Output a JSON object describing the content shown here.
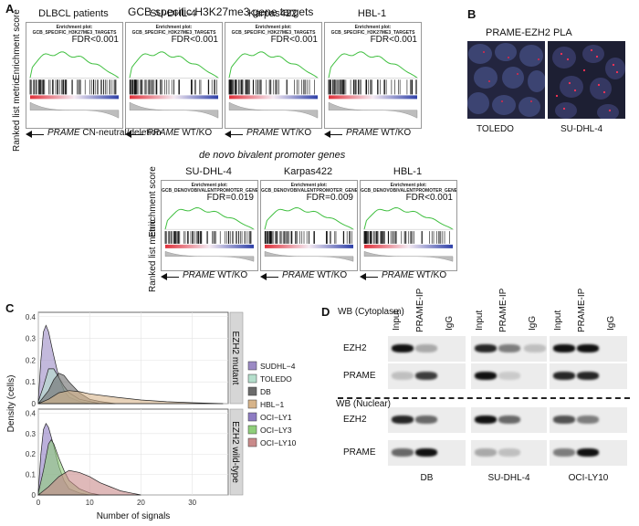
{
  "panel_a": {
    "label": "A",
    "title_top": "GCB-specific H3K27me3 gene targets",
    "title_bottom": "de novo bivalent promoter genes",
    "ylabel_top": "Enrichment score",
    "ylabel_bottom": "Ranked list metric",
    "top_row": [
      {
        "name": "DLBCL patients",
        "header": "Enrichment plot: GCB_SPECIFIC_H3K27ME3_TARGETS",
        "fdr": "FDR<0.001",
        "axis_gene": "PRAME",
        "axis_text": "CN-neutral/deletion"
      },
      {
        "name": "SU-DHL-4",
        "header": "Enrichment plot: GCB_SPECIFIC_H3K27ME3_TARGETS",
        "fdr": "FDR<0.001",
        "axis_gene": "PRAME",
        "axis_text": "WT/KO"
      },
      {
        "name": "Karpas422",
        "header": "Enrichment plot: GCB_SPECIFIC_H3K27ME3_TARGETS",
        "fdr": "FDR<0.001",
        "axis_gene": "PRAME",
        "axis_text": "WT/KO"
      },
      {
        "name": "HBL-1",
        "header": "Enrichment plot: GCB_SPECIFIC_H3K27ME3_TARGETS",
        "fdr": "FDR<0.001",
        "axis_gene": "PRAME",
        "axis_text": "WT/KO"
      }
    ],
    "bottom_row": [
      {
        "name": "SU-DHL-4",
        "header": "Enrichment plot: GCB_DENOVOBIVALENTPROMOTER_GENES",
        "fdr": "FDR=0.019",
        "axis_gene": "PRAME",
        "axis_text": "WT/KO"
      },
      {
        "name": "Karpas422",
        "header": "Enrichment plot: GCB_DENOVOBIVALENTPROMOTER_GENES",
        "fdr": "FDR=0.009",
        "axis_gene": "PRAME",
        "axis_text": "WT/KO"
      },
      {
        "name": "HBL-1",
        "header": "Enrichment plot: GCB_DENOVOBIVALENTPROMOTER_GENES",
        "fdr": "FDR<0.001",
        "axis_gene": "PRAME",
        "axis_text": "WT/KO"
      }
    ]
  },
  "panel_b": {
    "label": "B",
    "title": "PRAME-EZH2 PLA",
    "images": [
      "TOLEDO",
      "SU-DHL-4"
    ]
  },
  "panel_c": {
    "label": "C",
    "strip_top": "EZH2 mutant",
    "strip_bottom": "EZH2 wild-type",
    "legend": [
      {
        "name": "SUDHL−4",
        "color": "#9b8ac4"
      },
      {
        "name": "TOLEDO",
        "color": "#b5dfcc"
      },
      {
        "name": "DB",
        "color": "#6b6b6b"
      },
      {
        "name": "HBL−1",
        "color": "#d7b48a"
      },
      {
        "name": "OCI−LY1",
        "color": "#8e7cc3"
      },
      {
        "name": "OCI−LY3",
        "color": "#8fce7a"
      },
      {
        "name": "OCI−LY10",
        "color": "#c98a8a"
      }
    ]
  },
  "panel_d": {
    "label": "D",
    "wb_cyto": "WB (Cytoplasm)",
    "wb_nuc": "WB (Nuclear)",
    "lane_labels": [
      "Input",
      "PRAME-IP",
      "IgG"
    ],
    "rows": [
      "EZH2",
      "PRAME",
      "EZH2",
      "PRAME"
    ],
    "cell_lines": [
      "DB",
      "SU-DHL-4",
      "OCI-LY10"
    ]
  },
  "chart_data": [
    {
      "type": "area",
      "panel": "C",
      "facet": "EZH2 mutant",
      "xlabel": "Number of signals",
      "ylabel": "Density (cells)",
      "xlim": [
        0,
        37
      ],
      "ylim": [
        0,
        0.42
      ],
      "x_ticks": [
        0,
        10,
        20,
        30
      ],
      "y_ticks": [
        0.0,
        0.1,
        0.2,
        0.3,
        0.4
      ],
      "grid": true,
      "series": [
        {
          "name": "SUDHL−4",
          "color": "#9b8ac4",
          "x": [
            0,
            0.5,
            1,
            1.5,
            2,
            3,
            4,
            5,
            6,
            8,
            10
          ],
          "y": [
            0.02,
            0.2,
            0.33,
            0.36,
            0.33,
            0.22,
            0.12,
            0.06,
            0.03,
            0.01,
            0.0
          ]
        },
        {
          "name": "TOLEDO",
          "color": "#b5dfcc",
          "x": [
            0,
            1,
            2,
            3,
            4,
            5,
            6,
            8,
            10,
            12
          ],
          "y": [
            0.01,
            0.08,
            0.16,
            0.16,
            0.12,
            0.08,
            0.05,
            0.02,
            0.01,
            0.0
          ]
        },
        {
          "name": "DB",
          "color": "#6b6b6b",
          "x": [
            0,
            2,
            3,
            4,
            5,
            6,
            8,
            10,
            12,
            15
          ],
          "y": [
            0.0,
            0.06,
            0.11,
            0.14,
            0.13,
            0.1,
            0.05,
            0.02,
            0.01,
            0.0
          ]
        },
        {
          "name": "HBL−1",
          "color": "#d7b48a",
          "x": [
            0,
            2,
            4,
            6,
            8,
            10,
            15,
            20,
            25,
            30,
            36
          ],
          "y": [
            0.0,
            0.02,
            0.05,
            0.06,
            0.055,
            0.045,
            0.03,
            0.017,
            0.009,
            0.004,
            0.0
          ]
        }
      ]
    },
    {
      "type": "area",
      "panel": "C",
      "facet": "EZH2 wild-type",
      "xlabel": "Number of signals",
      "ylabel": "Density (cells)",
      "xlim": [
        0,
        37
      ],
      "ylim": [
        0,
        0.42
      ],
      "x_ticks": [
        0,
        10,
        20,
        30
      ],
      "y_ticks": [
        0.0,
        0.1,
        0.2,
        0.3,
        0.4
      ],
      "grid": true,
      "series": [
        {
          "name": "OCI−LY1",
          "color": "#8e7cc3",
          "x": [
            0,
            0.5,
            1,
            1.5,
            2,
            3,
            4,
            5,
            6,
            8,
            10
          ],
          "y": [
            0.02,
            0.2,
            0.32,
            0.35,
            0.33,
            0.24,
            0.14,
            0.07,
            0.03,
            0.01,
            0.0
          ]
        },
        {
          "name": "OCI−LY3",
          "color": "#8fce7a",
          "x": [
            0,
            1,
            2,
            2.5,
            3,
            4,
            5,
            6,
            8,
            10,
            12
          ],
          "y": [
            0.01,
            0.12,
            0.25,
            0.27,
            0.25,
            0.18,
            0.12,
            0.07,
            0.03,
            0.01,
            0.0
          ]
        },
        {
          "name": "OCI−LY10",
          "color": "#c98a8a",
          "x": [
            0,
            2,
            4,
            6,
            8,
            10,
            12,
            14,
            16,
            18,
            20
          ],
          "y": [
            0.0,
            0.04,
            0.09,
            0.12,
            0.11,
            0.09,
            0.06,
            0.04,
            0.02,
            0.01,
            0.0
          ]
        }
      ]
    }
  ]
}
